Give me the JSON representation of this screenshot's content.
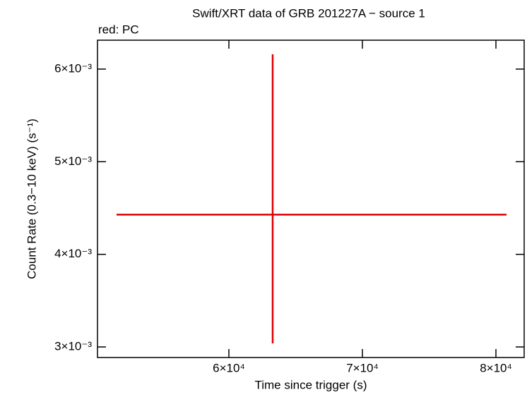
{
  "chart_data": {
    "type": "errorbar",
    "title": "Swift/XRT data of GRB 201227A − source 1",
    "subtitle": "red: PC",
    "x_label": "Time since trigger (s)",
    "y_label": "Count Rate (0.3−10 keV) (s⁻¹)",
    "xlim": [
      50160,
      82116
    ],
    "ylim": [
      0.002886,
      0.006312
    ],
    "xticks": [
      {
        "value": 60000,
        "label": "6×10⁴"
      },
      {
        "value": 70000,
        "label": "7×10⁴"
      },
      {
        "value": 80000,
        "label": "8×10⁴"
      }
    ],
    "yticks": [
      {
        "value": 0.003,
        "label": "3×10⁻³"
      },
      {
        "value": 0.004,
        "label": "4×10⁻³"
      },
      {
        "value": 0.005,
        "label": "5×10⁻³"
      },
      {
        "value": 0.006,
        "label": "6×10⁻³"
      }
    ],
    "series": [
      {
        "color": "#e00000",
        "x": [
          63280
        ],
        "xerr_minus": [
          11693
        ],
        "xerr_plus": [
          17514
        ],
        "values": [
          0.004429
        ],
        "yerr_minus": [
          0.001391
        ],
        "yerr_plus": [
          0.001731
        ]
      }
    ]
  }
}
